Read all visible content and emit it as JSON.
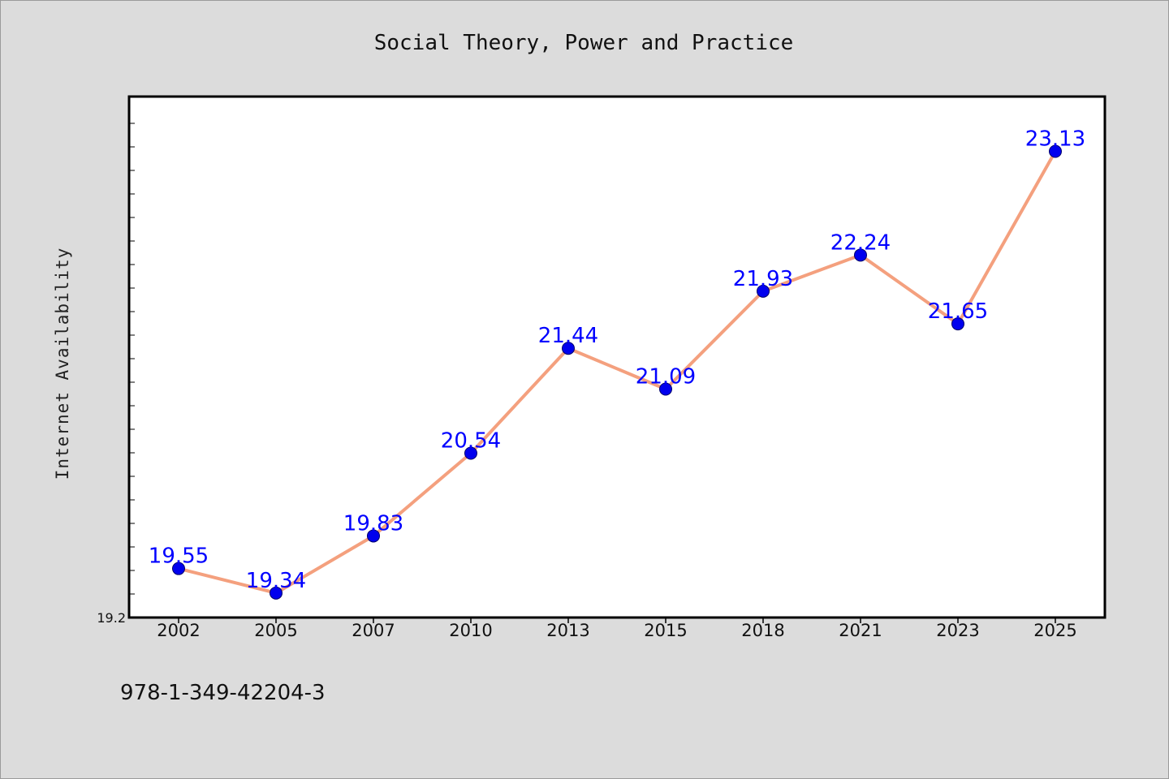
{
  "chart_data": {
    "type": "line",
    "title": "Social Theory, Power and Practice",
    "ylabel": "Internet Availability",
    "xlabel": "",
    "categories": [
      "2002",
      "2005",
      "2007",
      "2010",
      "2013",
      "2015",
      "2018",
      "2021",
      "2023",
      "2025"
    ],
    "series": [
      {
        "values": [
          19.55,
          19.34,
          19.83,
          20.54,
          21.44,
          21.09,
          21.93,
          22.24,
          21.65,
          23.13
        ]
      }
    ],
    "data_labels": [
      "19.55",
      "19.34",
      "19.83",
      "20.54",
      "21.44",
      "21.09",
      "21.93",
      "22.24",
      "21.65",
      "23.13"
    ],
    "y_tick_labels": [
      "19.2"
    ],
    "ylim": [
      19.13,
      23.6
    ],
    "grid": false,
    "legend": "none",
    "colors": {
      "line": "#f4a07e",
      "marker": "#0000ee",
      "data_label": "#0000ff",
      "background": "#dcdcdc",
      "plot_background": "#ffffff"
    }
  },
  "footer": {
    "isbn": "978-1-349-42204-3"
  }
}
